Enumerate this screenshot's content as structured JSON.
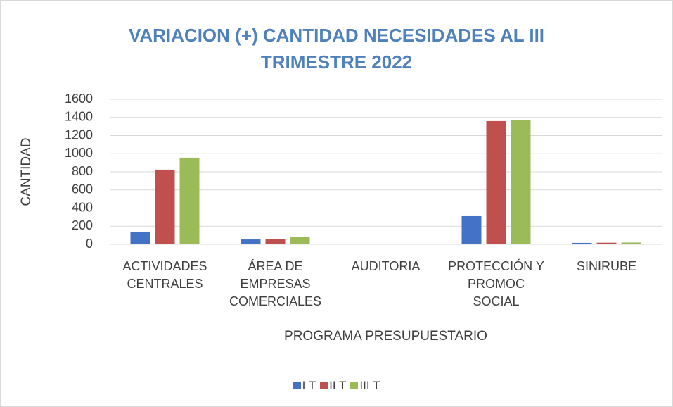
{
  "chart_data": {
    "type": "bar",
    "title": "VARIACION (+) CANTIDAD NECESIDADES AL III TRIMESTRE 2022",
    "x_label": "PROGRAMA PRESUPUESTARIO",
    "y_label": "CANTIDAD",
    "categories": [
      "ACTIVIDADES CENTRALES",
      "ÁREA DE EMPRESAS COMERCIALES",
      "AUDITORIA",
      "PROTECCIÓN Y PROMOC SOCIAL",
      "SINIRUBE"
    ],
    "series": [
      {
        "name": "I T",
        "color": "#4472c4",
        "values": [
          140,
          54,
          3,
          311,
          16
        ]
      },
      {
        "name": "II T",
        "color": "#c0504d",
        "values": [
          824,
          62,
          3,
          1360,
          18
        ]
      },
      {
        "name": "III T",
        "color": "#9bbb59",
        "values": [
          956,
          78,
          5,
          1368,
          20
        ]
      }
    ],
    "ylim": [
      0,
      1600
    ],
    "yticks": [
      0,
      200,
      400,
      600,
      800,
      1000,
      1200,
      1400,
      1600
    ],
    "grid": true,
    "legend": "bottom"
  }
}
